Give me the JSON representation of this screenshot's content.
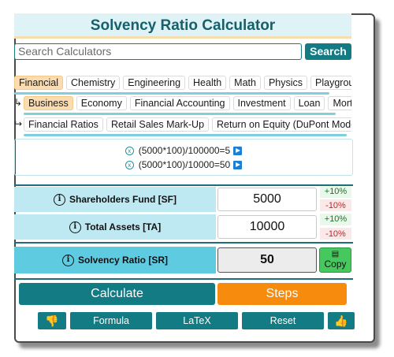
{
  "title": "Solvency Ratio Calculator",
  "search": {
    "placeholder": "Search Calculators",
    "button_label": "Search"
  },
  "categories_row1": [
    "Financial",
    "Chemistry",
    "Engineering",
    "Health",
    "Math",
    "Physics",
    "Playground"
  ],
  "categories_row2": [
    "Business",
    "Economy",
    "Financial Accounting",
    "Investment",
    "Loan",
    "Mortgage"
  ],
  "categories_row3": [
    "Financial Ratios",
    "Retail Sales Mark-Up",
    "Return on Equity (DuPont Model)"
  ],
  "formulas": [
    "(5000*100)/100000=5",
    "(5000*100)/10000=50"
  ],
  "inputs": [
    {
      "label": "Shareholders Fund [SF]",
      "value": "5000",
      "up": "+10%",
      "down": "-10%"
    },
    {
      "label": "Total Assets [TA]",
      "value": "10000",
      "up": "+10%",
      "down": "-10%"
    }
  ],
  "result": {
    "label": "Solvency Ratio [SR]",
    "value": "50",
    "copy_label": "Copy"
  },
  "actions": {
    "calculate": "Calculate",
    "steps": "Steps",
    "formula": "Formula",
    "latex": "LaTeX",
    "reset": "Reset"
  },
  "colors": {
    "teal": "#127b84",
    "orange": "#f68b0e",
    "green": "#47c85f",
    "light_blue": "#bfe9f2",
    "result_blue": "#5fcbe0"
  }
}
